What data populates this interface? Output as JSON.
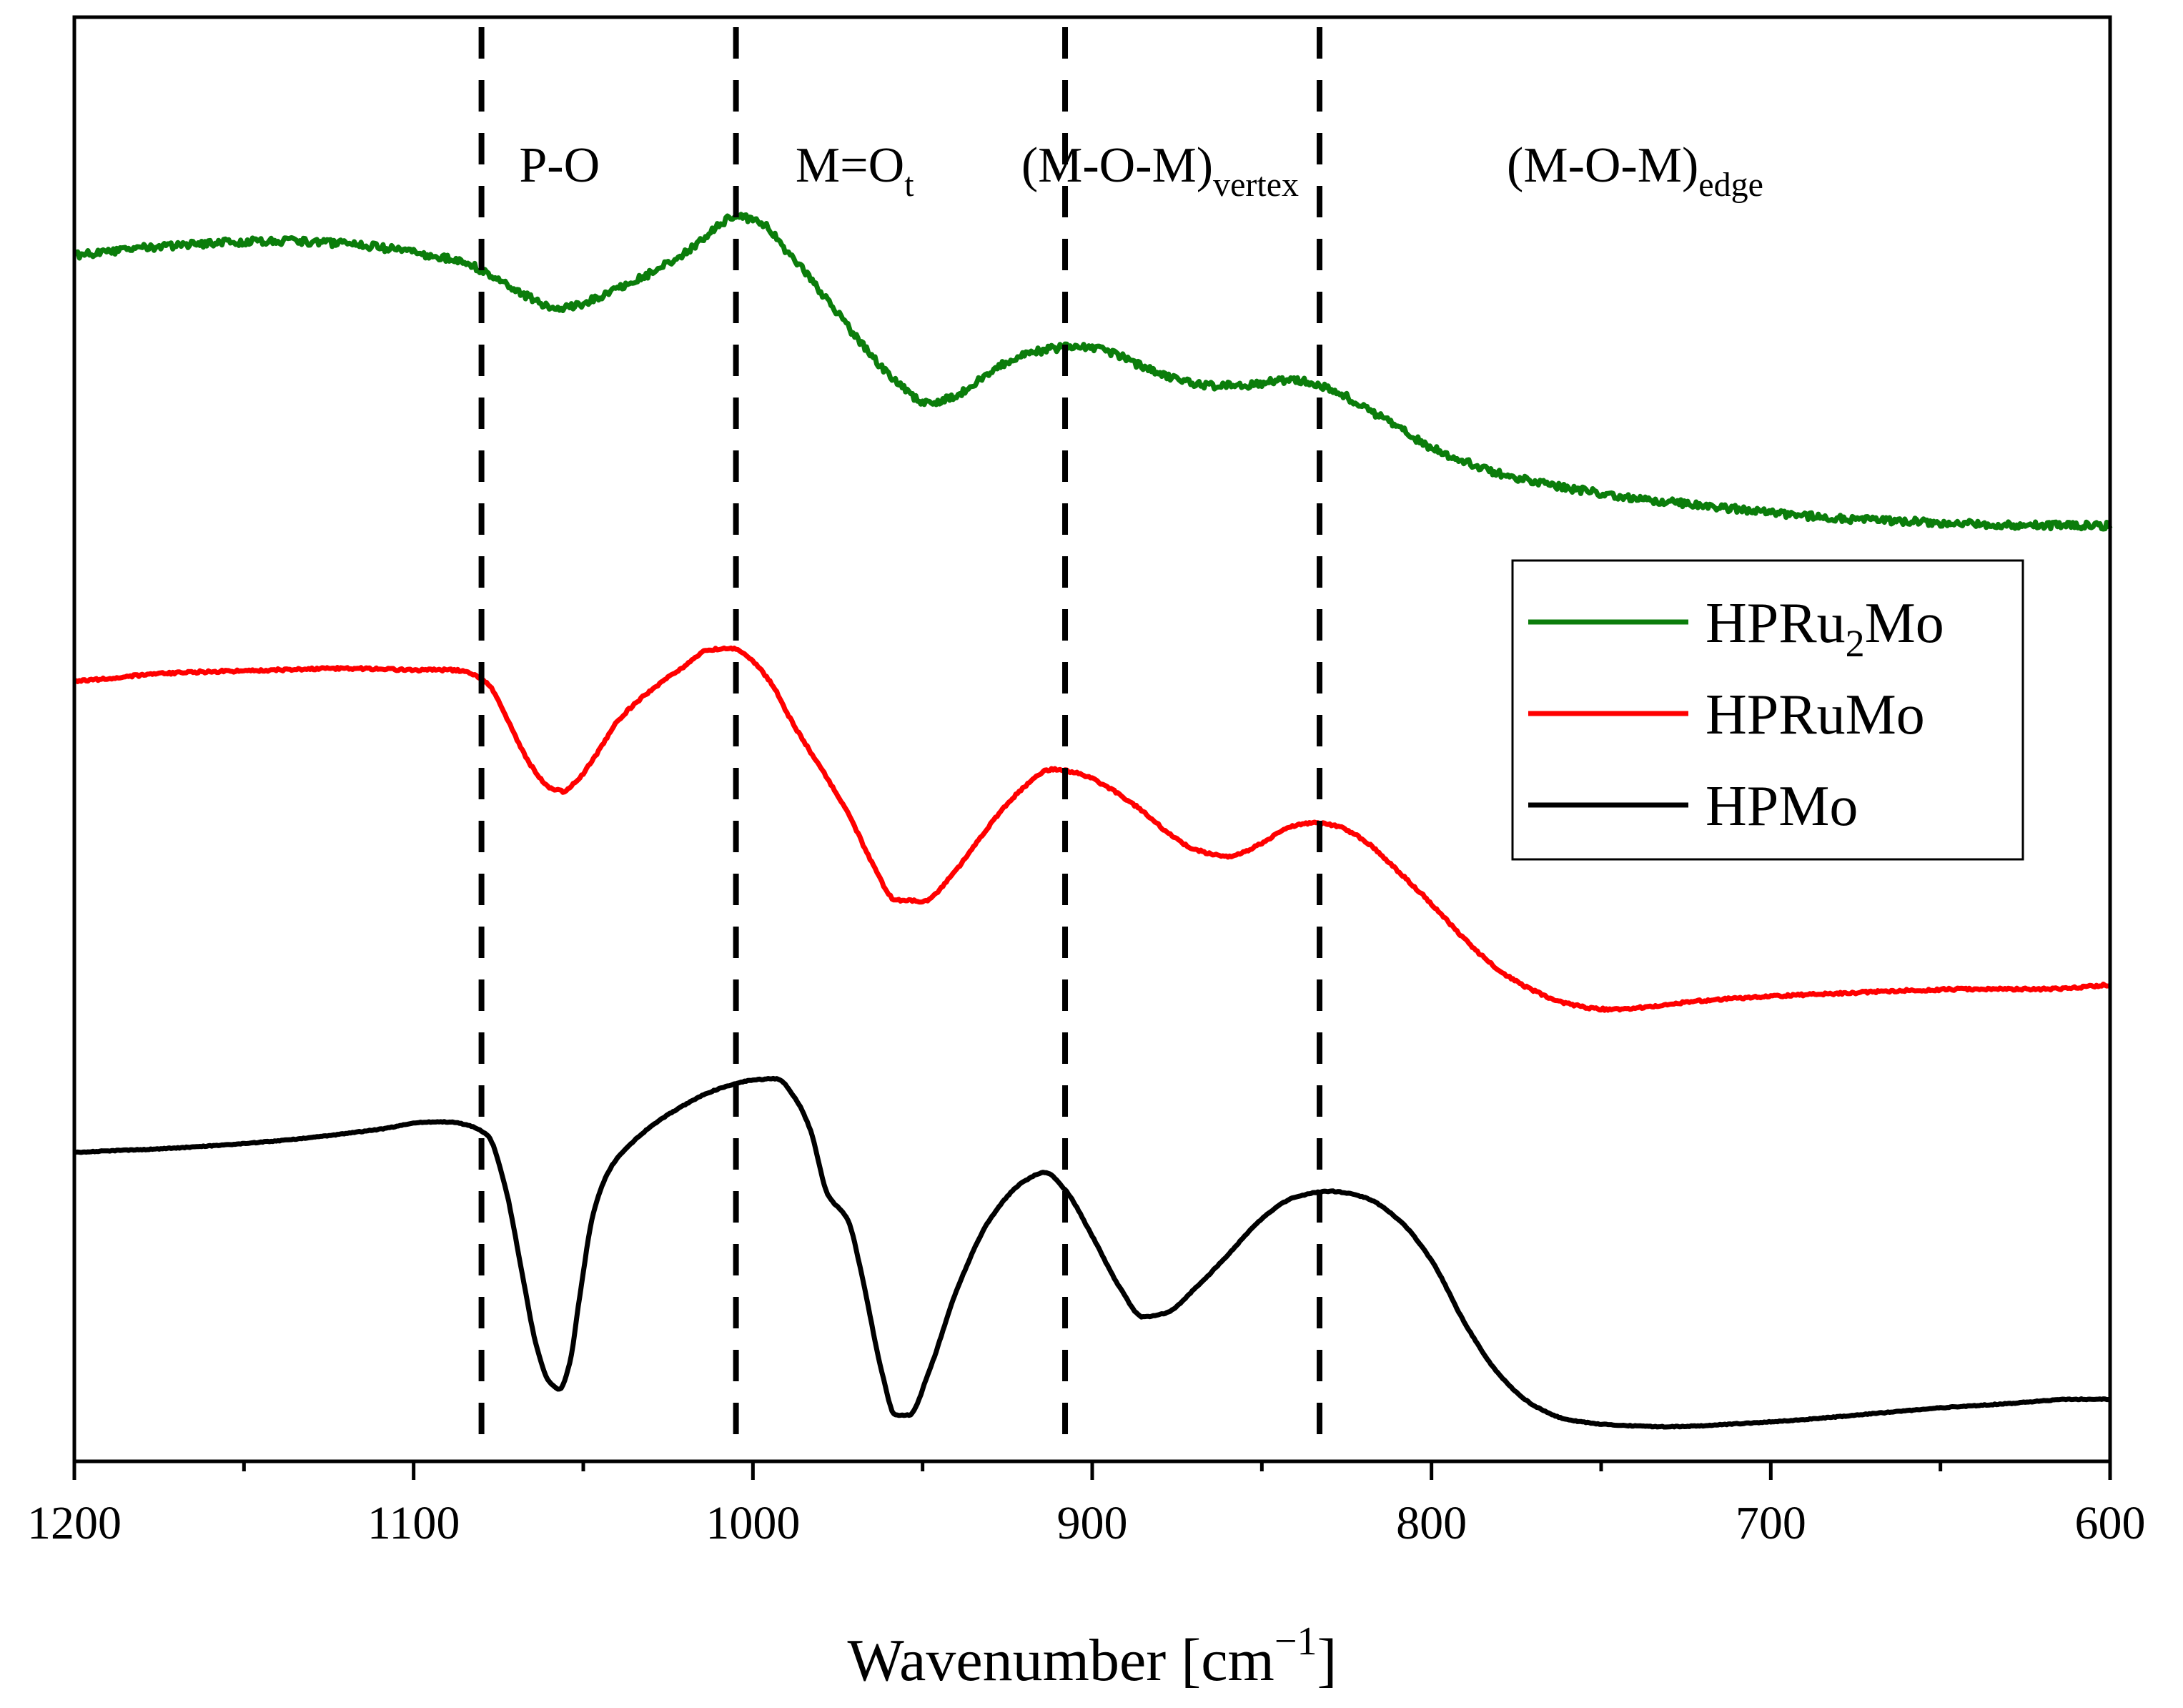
{
  "chart_data": {
    "type": "line",
    "title": "",
    "xlabel": "Wavenumber [cm",
    "xlabel_exponent": "−1",
    "xlabel_suffix": "]",
    "ylabel": "",
    "xlim": [
      1200,
      600
    ],
    "x_reversed": true,
    "xticks": [
      1200,
      1100,
      1000,
      900,
      800,
      700,
      600
    ],
    "xtick_labels": [
      "1200",
      "1100",
      "1000",
      "900",
      "800",
      "700",
      "600"
    ],
    "x_minor_step": 50,
    "ylim": [
      0,
      1
    ],
    "y_ticks_shown": false,
    "grid": false,
    "legend_position": "right",
    "reference_lines": [
      1080,
      1005,
      908,
      833
    ],
    "regions": [
      {
        "base": "P-O",
        "sub": "",
        "x": 1057
      },
      {
        "base": "M=O",
        "sub": "t",
        "x": 970
      },
      {
        "base": "(M-O-M)",
        "sub": "vertex",
        "x": 880
      },
      {
        "base": "(M-O-M)",
        "sub": "edge",
        "x": 740
      }
    ],
    "series": [
      {
        "name": "HPRu2Mo",
        "label_main": "HPRu",
        "label_sub": "2",
        "label_tail": "Mo",
        "color": "#0b7d0b",
        "noise": 0.0025,
        "x": [
          1200,
          1170,
          1140,
          1120,
          1100,
          1085,
          1075,
          1065,
          1057,
          1050,
          1040,
          1030,
          1020,
          1012,
          1005,
          998,
          990,
          980,
          970,
          960,
          948,
          940,
          930,
          920,
          910,
          903,
          895,
          885,
          875,
          865,
          855,
          845,
          838,
          830,
          820,
          810,
          800,
          790,
          780,
          760,
          740,
          720,
          700,
          680,
          660,
          640,
          620,
          600
        ],
        "y": [
          0.835,
          0.842,
          0.845,
          0.843,
          0.837,
          0.83,
          0.818,
          0.805,
          0.798,
          0.802,
          0.812,
          0.823,
          0.837,
          0.852,
          0.862,
          0.858,
          0.838,
          0.81,
          0.78,
          0.753,
          0.733,
          0.738,
          0.755,
          0.766,
          0.771,
          0.772,
          0.768,
          0.758,
          0.749,
          0.745,
          0.745,
          0.748,
          0.748,
          0.743,
          0.73,
          0.716,
          0.702,
          0.692,
          0.684,
          0.674,
          0.667,
          0.662,
          0.657,
          0.653,
          0.651,
          0.649,
          0.648,
          0.648
        ]
      },
      {
        "name": "HPRuMo",
        "label_main": "HPRuMo",
        "label_sub": "",
        "label_tail": "",
        "color": "#ff0000",
        "noise": 0.0008,
        "x": [
          1200,
          1170,
          1140,
          1120,
          1100,
          1090,
          1085,
          1078,
          1072,
          1066,
          1060,
          1056,
          1052,
          1046,
          1040,
          1030,
          1020,
          1013,
          1007,
          1002,
          995,
          988,
          980,
          972,
          965,
          958,
          950,
          940,
          930,
          920,
          912,
          905,
          895,
          885,
          878,
          870,
          860,
          850,
          842,
          835,
          828,
          820,
          810,
          800,
          790,
          780,
          770,
          760,
          748,
          740,
          720,
          700,
          680,
          660,
          640,
          620,
          600
        ],
        "y": [
          0.54,
          0.546,
          0.548,
          0.549,
          0.548,
          0.548,
          0.547,
          0.538,
          0.512,
          0.484,
          0.467,
          0.464,
          0.471,
          0.49,
          0.512,
          0.534,
          0.551,
          0.562,
          0.563,
          0.558,
          0.54,
          0.51,
          0.48,
          0.449,
          0.415,
          0.389,
          0.388,
          0.41,
          0.441,
          0.467,
          0.479,
          0.477,
          0.466,
          0.45,
          0.436,
          0.424,
          0.419,
          0.428,
          0.439,
          0.442,
          0.44,
          0.43,
          0.409,
          0.386,
          0.361,
          0.34,
          0.326,
          0.317,
          0.313,
          0.314,
          0.319,
          0.322,
          0.324,
          0.326,
          0.327,
          0.327,
          0.33
        ]
      },
      {
        "name": "HPMo",
        "label_main": "HPMo",
        "label_sub": "",
        "label_tail": "",
        "color": "#000000",
        "noise": 0.0003,
        "x": [
          1200,
          1170,
          1140,
          1110,
          1095,
          1090,
          1083,
          1078,
          1073,
          1068,
          1064,
          1060,
          1057,
          1054,
          1051,
          1047,
          1042,
          1035,
          1025,
          1010,
          1000,
          993,
          988,
          983,
          978,
          972,
          968,
          962,
          958,
          954,
          948,
          940,
          930,
          920,
          914,
          908,
          900,
          892,
          885,
          878,
          870,
          860,
          850,
          840,
          830,
          820,
          810,
          800,
          790,
          780,
          770,
          760,
          745,
          730,
          710,
          690,
          670,
          650,
          630,
          610,
          600
        ],
        "y": [
          0.214,
          0.217,
          0.222,
          0.23,
          0.235,
          0.235,
          0.232,
          0.225,
          0.19,
          0.13,
          0.082,
          0.055,
          0.05,
          0.068,
          0.115,
          0.172,
          0.203,
          0.222,
          0.24,
          0.258,
          0.264,
          0.265,
          0.253,
          0.229,
          0.185,
          0.167,
          0.13,
          0.062,
          0.032,
          0.032,
          0.063,
          0.118,
          0.168,
          0.194,
          0.2,
          0.188,
          0.156,
          0.121,
          0.1,
          0.103,
          0.119,
          0.143,
          0.168,
          0.183,
          0.187,
          0.183,
          0.168,
          0.139,
          0.095,
          0.06,
          0.039,
          0.029,
          0.025,
          0.024,
          0.026,
          0.029,
          0.033,
          0.037,
          0.04,
          0.043,
          0.043
        ]
      }
    ]
  }
}
